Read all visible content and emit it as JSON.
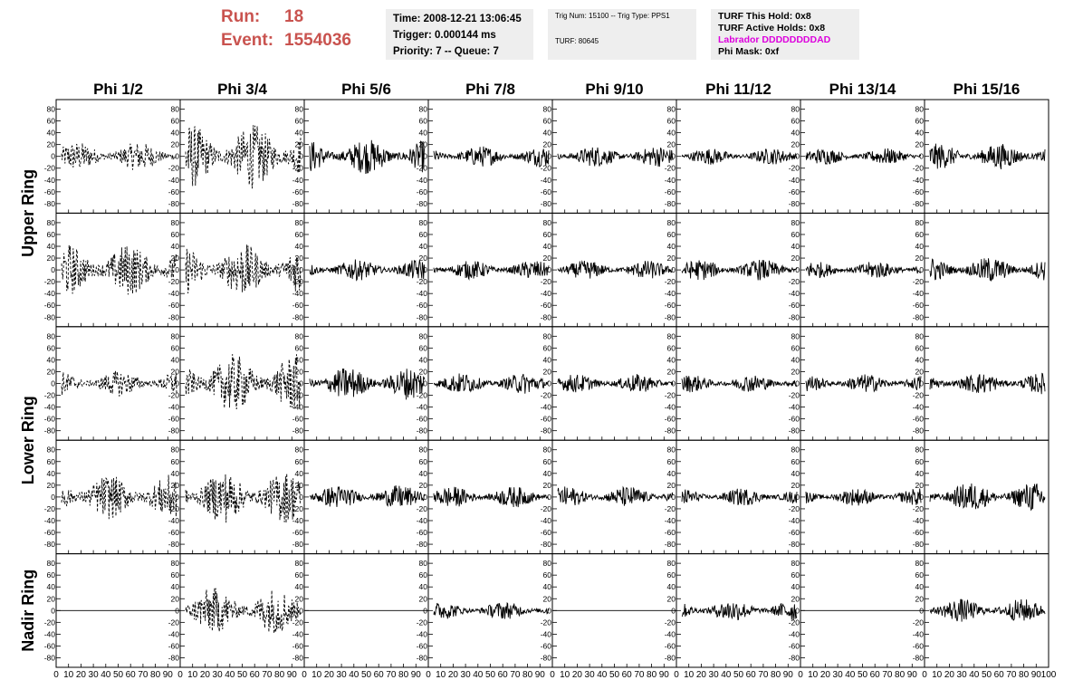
{
  "header": {
    "run_label": "Run:",
    "run_value": "18",
    "event_label": "Event:",
    "event_value": "1554036"
  },
  "info_boxes": {
    "time": "Time: 2008-12-21 13:06:45",
    "trigger": "Trigger: 0.000144 ms",
    "priority": "Priority: 7 -- Queue: 7",
    "trig_num": "Trig Num: 15100 -- Trig Type: PPS1",
    "turf": "TURF: 80645",
    "turf_this_hold": "TURF This Hold: 0x8",
    "turf_active_holds": "TURF Active Holds: 0x8",
    "labrador": "Labrador DDDDDDDDAD",
    "phi_mask": "Phi Mask: 0xf"
  },
  "colors": {
    "accent": "#c9534f",
    "labrador": "#dd00dd",
    "trace": "#000000"
  },
  "chart_data": {
    "type": "line",
    "columns": [
      "Phi 1/2",
      "Phi 3/4",
      "Phi 5/6",
      "Phi 7/8",
      "Phi 9/10",
      "Phi 11/12",
      "Phi 13/14",
      "Phi 15/16"
    ],
    "ring_labels": [
      "Upper Ring",
      "Lower Ring",
      "Nadir Ring"
    ],
    "rows_per_ring": [
      2,
      2,
      1
    ],
    "x_range": [
      0,
      100
    ],
    "x_ticks": [
      0,
      10,
      20,
      30,
      40,
      50,
      60,
      70,
      80,
      90,
      100
    ],
    "y_range": [
      -90,
      90
    ],
    "y_ticks": [
      -80,
      -60,
      -40,
      -20,
      0,
      20,
      40,
      60,
      80
    ],
    "grid": false,
    "panels": [
      [
        {
          "style": "dashed",
          "amp": 25
        },
        {
          "style": "dashed",
          "amp": 55
        },
        {
          "style": "solid",
          "amp": 30
        },
        {
          "style": "solid",
          "amp": 18
        },
        {
          "style": "solid",
          "amp": 18
        },
        {
          "style": "solid",
          "amp": 14
        },
        {
          "style": "solid",
          "amp": 14
        },
        {
          "style": "solid",
          "amp": 22
        }
      ],
      [
        {
          "style": "dashed",
          "amp": 45
        },
        {
          "style": "dashed",
          "amp": 45
        },
        {
          "style": "solid",
          "amp": 18
        },
        {
          "style": "solid",
          "amp": 16
        },
        {
          "style": "solid",
          "amp": 16
        },
        {
          "style": "solid",
          "amp": 18
        },
        {
          "style": "solid",
          "amp": 15
        },
        {
          "style": "solid",
          "amp": 22
        }
      ],
      [
        {
          "style": "dashed",
          "amp": 22
        },
        {
          "style": "dashed",
          "amp": 50
        },
        {
          "style": "solid",
          "amp": 28
        },
        {
          "style": "solid",
          "amp": 18
        },
        {
          "style": "solid",
          "amp": 16
        },
        {
          "style": "solid",
          "amp": 15
        },
        {
          "style": "solid",
          "amp": 16
        },
        {
          "style": "solid",
          "amp": 18
        }
      ],
      [
        {
          "style": "dashed",
          "amp": 38
        },
        {
          "style": "dashed",
          "amp": 45
        },
        {
          "style": "solid",
          "amp": 20
        },
        {
          "style": "solid",
          "amp": 18
        },
        {
          "style": "solid",
          "amp": 18
        },
        {
          "style": "solid",
          "amp": 15
        },
        {
          "style": "solid",
          "amp": 15
        },
        {
          "style": "solid",
          "amp": 25
        }
      ],
      [
        {
          "style": "flat",
          "amp": 0
        },
        {
          "style": "dashed",
          "amp": 40
        },
        {
          "style": "flat",
          "amp": 0
        },
        {
          "style": "solid",
          "amp": 15
        },
        {
          "style": "flat",
          "amp": 0
        },
        {
          "style": "solid",
          "amp": 18
        },
        {
          "style": "flat",
          "amp": 0
        },
        {
          "style": "solid",
          "amp": 20
        }
      ]
    ]
  }
}
